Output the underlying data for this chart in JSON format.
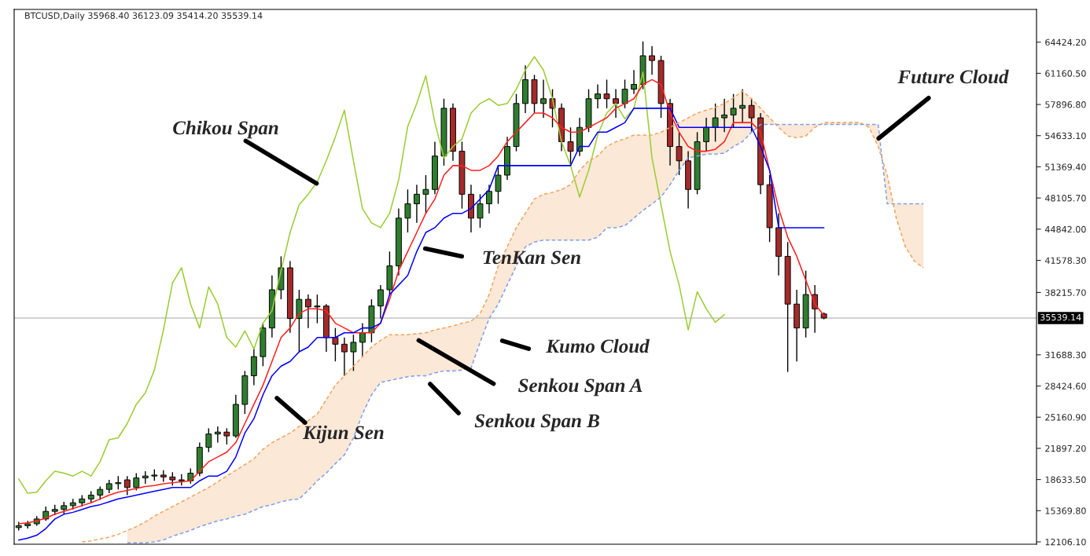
{
  "chart_data": {
    "type": "candlestick",
    "title": "BTCUSD,Daily 35968.40 36123.09 35414.20 35539.14",
    "categories": [
      null,
      null,
      null,
      null,
      null,
      null,
      null,
      null,
      null,
      null,
      null,
      null,
      null,
      null,
      null,
      null,
      null,
      null,
      null,
      null,
      null,
      null,
      null,
      null,
      null,
      null,
      null,
      null,
      null,
      null,
      null,
      null,
      null,
      null,
      null,
      null,
      null,
      null,
      null,
      null,
      null,
      null,
      null,
      null,
      null,
      null,
      null,
      null,
      null,
      null,
      null,
      null,
      null,
      null,
      null,
      null,
      null,
      null,
      null,
      null,
      null,
      null,
      null,
      null,
      null,
      null,
      null,
      null,
      null,
      null,
      null,
      null,
      null,
      null,
      null,
      null,
      null,
      null,
      null,
      null,
      null,
      null,
      null,
      null,
      null,
      null,
      null,
      null,
      null,
      null,
      null,
      null,
      null,
      null,
      null,
      null,
      null,
      null,
      null,
      null,
      null,
      null,
      null,
      null,
      null,
      null,
      null,
      null,
      null,
      null,
      null,
      null,
      null
    ],
    "ohlc": [
      [
        13600,
        14200,
        13300,
        13800
      ],
      [
        13800,
        14300,
        13500,
        14000
      ],
      [
        14000,
        14800,
        13800,
        14500
      ],
      [
        14500,
        15800,
        14300,
        15300
      ],
      [
        15300,
        16000,
        14900,
        15500
      ],
      [
        15500,
        16300,
        15000,
        15900
      ],
      [
        15900,
        16600,
        15500,
        16200
      ],
      [
        16200,
        17000,
        15800,
        16600
      ],
      [
        16600,
        17400,
        16200,
        17000
      ],
      [
        17000,
        17900,
        16500,
        17600
      ],
      [
        17600,
        18600,
        17200,
        18200
      ],
      [
        18200,
        19000,
        17600,
        18300
      ],
      [
        18600,
        19000,
        17000,
        17800
      ],
      [
        17800,
        19300,
        17500,
        18800
      ],
      [
        18800,
        19500,
        18200,
        19000
      ],
      [
        19000,
        19700,
        18500,
        19100
      ],
      [
        19100,
        19600,
        18400,
        18900
      ],
      [
        18900,
        19400,
        18000,
        18600
      ],
      [
        18600,
        19200,
        18000,
        18500
      ],
      [
        18500,
        19800,
        18200,
        19300
      ],
      [
        19300,
        22500,
        19000,
        22000
      ],
      [
        22000,
        24000,
        21500,
        23400
      ],
      [
        23400,
        24200,
        22500,
        23600
      ],
      [
        23600,
        24000,
        22300,
        23200
      ],
      [
        23200,
        27500,
        23000,
        26500
      ],
      [
        26500,
        30000,
        25500,
        29500
      ],
      [
        29500,
        32500,
        28500,
        31500
      ],
      [
        31500,
        35000,
        30500,
        34500
      ],
      [
        34500,
        40000,
        33500,
        38500
      ],
      [
        38500,
        42000,
        37500,
        40800
      ],
      [
        40800,
        41500,
        34000,
        35500
      ],
      [
        35500,
        38500,
        32000,
        37500
      ],
      [
        37500,
        38000,
        34500,
        36700
      ],
      [
        36700,
        38000,
        35000,
        36800
      ],
      [
        36800,
        37000,
        32000,
        33500
      ],
      [
        33500,
        34500,
        31000,
        32800
      ],
      [
        32800,
        33500,
        29500,
        32000
      ],
      [
        32000,
        33800,
        30000,
        33000
      ],
      [
        33000,
        35000,
        31500,
        34000
      ],
      [
        34000,
        37500,
        33000,
        36800
      ],
      [
        36800,
        39000,
        35500,
        38500
      ],
      [
        38500,
        42500,
        38000,
        41000
      ],
      [
        41000,
        47000,
        40000,
        46000
      ],
      [
        46000,
        49000,
        44500,
        47500
      ],
      [
        47500,
        49500,
        45500,
        48500
      ],
      [
        48500,
        50500,
        46500,
        49000
      ],
      [
        49000,
        54000,
        48500,
        52500
      ],
      [
        52500,
        58500,
        51500,
        57500
      ],
      [
        57500,
        58000,
        52000,
        53000
      ],
      [
        53000,
        54000,
        47000,
        48500
      ],
      [
        48500,
        49500,
        44500,
        46000
      ],
      [
        46000,
        48500,
        45000,
        47500
      ],
      [
        47500,
        49500,
        46500,
        48800
      ],
      [
        48800,
        51500,
        47500,
        50500
      ],
      [
        50500,
        54500,
        50000,
        53500
      ],
      [
        53500,
        59000,
        53000,
        58000
      ],
      [
        58000,
        62000,
        57000,
        60500
      ],
      [
        60500,
        61000,
        57000,
        58000
      ],
      [
        58000,
        60500,
        56500,
        58500
      ],
      [
        58500,
        59500,
        55500,
        57500
      ],
      [
        57500,
        58000,
        53000,
        54000
      ],
      [
        54000,
        55500,
        51500,
        53000
      ],
      [
        53000,
        56500,
        52500,
        55500
      ],
      [
        55500,
        59500,
        55000,
        58500
      ],
      [
        58500,
        60000,
        57500,
        59000
      ],
      [
        59000,
        60500,
        57500,
        58500
      ],
      [
        58500,
        59500,
        56500,
        58000
      ],
      [
        58000,
        60500,
        57500,
        59500
      ],
      [
        59500,
        61500,
        59000,
        60000
      ],
      [
        60000,
        64500,
        59500,
        63000
      ],
      [
        63000,
        64000,
        61000,
        62500
      ],
      [
        62500,
        63000,
        56500,
        58000
      ],
      [
        58000,
        58500,
        51500,
        53500
      ],
      [
        53500,
        55000,
        50500,
        52000
      ],
      [
        52000,
        53000,
        47000,
        49000
      ],
      [
        49000,
        55000,
        48500,
        54000
      ],
      [
        54000,
        56500,
        53000,
        55500
      ],
      [
        55500,
        58000,
        54000,
        56500
      ],
      [
        56500,
        58500,
        55000,
        56800
      ],
      [
        56800,
        59000,
        55500,
        57500
      ],
      [
        57500,
        59500,
        56000,
        57800
      ],
      [
        57800,
        58500,
        55000,
        56500
      ],
      [
        56500,
        57000,
        48500,
        49500
      ],
      [
        49500,
        50500,
        43500,
        45000
      ],
      [
        45000,
        46500,
        40000,
        42000
      ],
      [
        42000,
        43500,
        29900,
        37000
      ],
      [
        37000,
        38500,
        31000,
        34500
      ],
      [
        34500,
        40500,
        33500,
        38000
      ],
      [
        38000,
        39000,
        34000,
        36500
      ],
      [
        35968.4,
        36123.09,
        35414.2,
        35539.14
      ],
      null,
      null,
      null,
      null,
      null,
      null,
      null,
      null,
      null,
      null,
      null,
      null,
      null,
      null,
      null,
      null,
      null,
      null,
      null,
      null,
      null,
      null,
      null
    ],
    "colors": [
      "#2f7d2f",
      "#2f7d2f",
      "#2f7d2f",
      "#2f7d2f",
      "#2f7d2f",
      "#2f7d2f",
      "#2f7d2f",
      "#2f7d2f",
      "#2f7d2f",
      "#2f7d2f",
      "#2f7d2f",
      "#2f7d2f",
      "#a52a2a",
      "#2f7d2f",
      "#2f7d2f",
      "#2f7d2f",
      "#a52a2a",
      "#a52a2a",
      "#a52a2a",
      "#2f7d2f",
      "#2f7d2f",
      "#2f7d2f",
      "#2f7d2f",
      "#a52a2a",
      "#2f7d2f",
      "#2f7d2f",
      "#2f7d2f",
      "#2f7d2f",
      "#2f7d2f",
      "#2f7d2f",
      "#a52a2a",
      "#2f7d2f",
      "#a52a2a",
      "#2f7d2f",
      "#a52a2a",
      "#a52a2a",
      "#a52a2a",
      "#2f7d2f",
      "#2f7d2f",
      "#2f7d2f",
      "#2f7d2f",
      "#2f7d2f",
      "#2f7d2f",
      "#2f7d2f",
      "#2f7d2f",
      "#2f7d2f",
      "#2f7d2f",
      "#2f7d2f",
      "#a52a2a",
      "#a52a2a",
      "#a52a2a",
      "#2f7d2f",
      "#2f7d2f",
      "#2f7d2f",
      "#2f7d2f",
      "#2f7d2f",
      "#2f7d2f",
      "#a52a2a",
      "#2f7d2f",
      "#a52a2a",
      "#a52a2a",
      "#a52a2a",
      "#2f7d2f",
      "#2f7d2f",
      "#2f7d2f",
      "#a52a2a",
      "#a52a2a",
      "#2f7d2f",
      "#2f7d2f",
      "#2f7d2f",
      "#a52a2a",
      "#a52a2a",
      "#a52a2a",
      "#a52a2a",
      "#a52a2a",
      "#2f7d2f",
      "#2f7d2f",
      "#2f7d2f",
      "#2f7d2f",
      "#2f7d2f",
      "#2f7d2f",
      "#a52a2a",
      "#a52a2a",
      "#a52a2a",
      "#a52a2a",
      "#a52a2a",
      "#a52a2a",
      "#2f7d2f",
      "#a52a2a",
      "#a52a2a",
      null,
      null,
      null,
      null,
      null,
      null,
      null,
      null,
      null,
      null,
      null,
      null,
      null,
      null,
      null,
      null,
      null,
      null,
      null,
      null,
      null,
      null,
      null
    ],
    "series": [
      {
        "type": "line",
        "color": "#9acd32",
        "line_style": "solid",
        "values": [
          18700,
          17200,
          17300,
          18500,
          19500,
          19300,
          19000,
          19500,
          19000,
          20500,
          22800,
          23000,
          24500,
          26500,
          27700,
          30100,
          34300,
          39200,
          40800,
          37000,
          34500,
          38800,
          37000,
          33500,
          32500,
          34200,
          32300,
          35000,
          36300,
          40500,
          44500,
          47400,
          48500,
          49800,
          52000,
          54500,
          57300,
          52000,
          47000,
          45500,
          45000,
          46500,
          50000,
          55600,
          58000,
          60900,
          56000,
          52300,
          53500,
          54300,
          57000,
          58000,
          58500,
          57800,
          58000,
          59500,
          61500,
          62900,
          61500,
          58500,
          54000,
          51500,
          48200,
          51000,
          54700,
          57000,
          58000,
          56400,
          57500,
          61300,
          52300,
          47400,
          42500,
          39000,
          34300,
          38300,
          36500,
          35100,
          35900,
          null,
          null,
          null,
          null,
          null,
          null,
          null,
          null,
          null,
          null,
          null,
          null,
          null,
          null,
          null,
          null,
          null,
          null,
          null,
          null,
          null,
          null,
          null,
          null,
          null,
          null,
          null,
          null,
          null,
          null,
          null,
          null,
          null,
          null
        ]
      },
      {
        "type": "line",
        "color": "#ff2020",
        "line_style": "solid",
        "values": [
          14000,
          14100,
          14300,
          14600,
          15000,
          15300,
          15600,
          15900,
          16200,
          16600,
          17000,
          17300,
          17500,
          17700,
          17900,
          18000,
          18200,
          18300,
          18400,
          18500,
          19500,
          20500,
          21000,
          21500,
          22500,
          24500,
          26500,
          28500,
          31000,
          33500,
          34500,
          36000,
          36500,
          36500,
          36300,
          35000,
          34500,
          34000,
          34000,
          34000,
          35000,
          37500,
          40500,
          42500,
          44500,
          46500,
          48000,
          50500,
          51500,
          51500,
          51000,
          51000,
          51500,
          52500,
          54000,
          55000,
          56000,
          57000,
          57000,
          56500,
          55500,
          55000,
          55000,
          55500,
          56000,
          56500,
          57500,
          58000,
          58500,
          60000,
          60500,
          60000,
          57000,
          55000,
          53500,
          53000,
          53000,
          53200,
          54000,
          56000,
          56000,
          56000,
          55000,
          51000,
          47000,
          44000,
          42000,
          39500,
          37000,
          35800,
          null,
          null,
          null,
          null,
          null,
          null,
          null,
          null,
          null,
          null,
          null,
          null,
          null,
          null,
          null,
          null,
          null,
          null,
          null,
          null,
          null,
          null,
          null
        ]
      },
      {
        "type": "line",
        "color": "#0000ff",
        "line_style": "solid",
        "values": [
          12300,
          12500,
          12800,
          13500,
          14500,
          15000,
          15200,
          15500,
          15800,
          16000,
          16300,
          16600,
          16800,
          17000,
          17200,
          17400,
          17600,
          17800,
          17800,
          17800,
          18500,
          19000,
          19000,
          19500,
          21000,
          23500,
          25000,
          27500,
          29500,
          30500,
          31000,
          32000,
          32500,
          33500,
          33500,
          33500,
          34000,
          34000,
          34500,
          34500,
          35000,
          38000,
          39000,
          40000,
          42500,
          44500,
          45000,
          46000,
          46500,
          46500,
          47000,
          48000,
          49000,
          51500,
          51500,
          51500,
          51500,
          51500,
          51500,
          51500,
          51500,
          51500,
          53500,
          53500,
          55000,
          55000,
          55500,
          56000,
          57500,
          57500,
          57500,
          57500,
          57500,
          55500,
          55500,
          55500,
          55500,
          55500,
          55500,
          55500,
          55500,
          55500,
          53500,
          51000,
          45000,
          45000,
          45000,
          45000,
          45000,
          45000,
          null,
          null,
          null,
          null,
          null,
          null,
          null,
          null,
          null,
          null,
          null,
          null,
          null,
          null,
          null,
          null,
          null,
          null,
          null,
          null,
          null,
          null,
          null
        ]
      },
      {
        "type": "line",
        "color": "#f4a460",
        "line_style": "dashed",
        "lower": [
          null,
          null,
          null,
          null,
          null,
          null,
          null,
          null,
          null,
          null,
          null,
          null,
          12000,
          12000,
          12000,
          12100,
          12300,
          12700,
          13000,
          13300,
          13700,
          14000,
          14300,
          14500,
          14800,
          15000,
          15400,
          15800,
          16000,
          16300,
          16500,
          16600,
          17500,
          18500,
          19300,
          20300,
          21200,
          23000,
          25500,
          27500,
          28800,
          29000,
          29200,
          29400,
          29500,
          29500,
          29800,
          30000,
          30000,
          30100,
          30300,
          33000,
          35500,
          37000,
          39000,
          41000,
          43000,
          43500,
          43700,
          43700,
          43700,
          43700,
          43700,
          43700,
          44000,
          45000,
          45000,
          45200,
          46000,
          46800,
          47500,
          48200,
          49500,
          51000,
          52300,
          52500,
          52700,
          52700,
          52800,
          53500,
          54000,
          55000,
          55800,
          55800,
          55800,
          55800,
          55800,
          55800,
          55800,
          55800,
          55800,
          55800,
          55800,
          55800,
          55800,
          55800,
          47500,
          47500,
          47500,
          47500,
          47500,
          null,
          null,
          null,
          null,
          null,
          null,
          null,
          null,
          null,
          null,
          null,
          null
        ],
        "upper": [
          null,
          null,
          null,
          null,
          null,
          null,
          null,
          null,
          null,
          null,
          null,
          null,
          13300,
          13700,
          14200,
          14800,
          15300,
          15800,
          16300,
          16800,
          17300,
          17800,
          18400,
          19000,
          19600,
          20200,
          20800,
          21800,
          22500,
          23000,
          23500,
          24200,
          24800,
          25500,
          27000,
          28500,
          29500,
          30500,
          31500,
          32500,
          33200,
          33800,
          33800,
          33800,
          33900,
          34000,
          34300,
          34500,
          34700,
          35000,
          35200,
          36000,
          38000,
          41000,
          43000,
          45000,
          46500,
          48000,
          48500,
          48700,
          49000,
          49500,
          51000,
          52000,
          52500,
          53500,
          54000,
          54300,
          54700,
          54700,
          54700,
          55000,
          55500,
          56000,
          56500,
          57000,
          57300,
          57600,
          58000,
          58600,
          59300,
          58500,
          57500,
          56500,
          55500,
          54600,
          54400,
          54600,
          55500,
          56000,
          56000,
          56000,
          56000,
          56000,
          55500,
          53500,
          50500,
          46000,
          43000,
          41500,
          40800,
          null,
          null,
          null,
          null,
          null,
          null,
          null,
          null,
          null,
          null,
          null,
          null
        ],
        "values": [
          null,
          null,
          null,
          null,
          null,
          null,
          null,
          12100,
          12200,
          12400,
          12600,
          12900,
          13300,
          13700,
          14200,
          14800,
          15300,
          15800,
          16300,
          16800,
          17300,
          17800,
          18400,
          19000,
          19600,
          20200,
          20800,
          21800,
          22500,
          23000,
          23500,
          24200,
          24800,
          25500,
          27000,
          28500,
          29500,
          30500,
          31500,
          32500,
          33200,
          33800,
          33800,
          33800,
          33900,
          34000,
          34300,
          34500,
          34700,
          35000,
          35200,
          36000,
          38000,
          41000,
          43000,
          45000,
          46500,
          48000,
          48500,
          48700,
          49000,
          49500,
          51000,
          52000,
          52500,
          53500,
          54000,
          54300,
          54700,
          54700,
          54700,
          55000,
          55500,
          56000,
          56500,
          57000,
          57300,
          57600,
          58000,
          58600,
          59300,
          58500,
          57500,
          56500,
          55500,
          54600,
          54400,
          54600,
          55500,
          56000,
          56000,
          56000,
          56000,
          56000,
          55500,
          53500,
          50500,
          46000,
          43000,
          41500,
          40800,
          null,
          null,
          null,
          null,
          null,
          null,
          null,
          null,
          null,
          null,
          null,
          null
        ]
      },
      {
        "type": "line",
        "color": "#7f9fe8",
        "line_style": "dashed",
        "values": [
          null,
          null,
          null,
          null,
          null,
          null,
          null,
          null,
          null,
          null,
          null,
          null,
          12000,
          12000,
          12000,
          12100,
          12300,
          12700,
          13000,
          13300,
          13700,
          14000,
          14300,
          14500,
          14800,
          15000,
          15400,
          15800,
          16000,
          16300,
          16500,
          16600,
          17500,
          18500,
          19300,
          20300,
          21200,
          23000,
          25500,
          27500,
          28800,
          29000,
          29200,
          29400,
          29500,
          29500,
          29800,
          30000,
          30000,
          30100,
          30300,
          33000,
          35500,
          37000,
          39000,
          41000,
          43000,
          43500,
          43700,
          43700,
          43700,
          43700,
          43700,
          43700,
          44000,
          45000,
          45000,
          45200,
          46000,
          46800,
          47500,
          48200,
          49500,
          51000,
          52300,
          52500,
          52700,
          52700,
          52800,
          53500,
          54000,
          55000,
          55800,
          55800,
          55800,
          55800,
          55800,
          55800,
          55800,
          55800,
          55800,
          55800,
          55800,
          55800,
          55800,
          55800,
          47500,
          47500,
          47500,
          47500,
          47500,
          null,
          null,
          null,
          null,
          null,
          null,
          null,
          null,
          null,
          null,
          null,
          null
        ]
      }
    ],
    "ylim": [
      11860,
      67850
    ],
    "yticks": [
      {
        "value": 64424.2,
        "label": "64424.20"
      },
      {
        "value": 61160.5,
        "label": "61160.50"
      },
      {
        "value": 57896.8,
        "label": "57896.80"
      },
      {
        "value": 54633.1,
        "label": "54633.10"
      },
      {
        "value": 51369.4,
        "label": "51369.40"
      },
      {
        "value": 48105.7,
        "label": "48105.70"
      },
      {
        "value": 44842,
        "label": "44842.00"
      },
      {
        "value": 41578.3,
        "label": "41578.30"
      },
      {
        "value": 38215.7,
        "label": "38215.70"
      },
      {
        "value": 31688.3,
        "label": "31688.30"
      },
      {
        "value": 28424.6,
        "label": "28424.60"
      },
      {
        "value": 25160.9,
        "label": "25160.90"
      },
      {
        "value": 21897.2,
        "label": "21897.20"
      },
      {
        "value": 18633.5,
        "label": "18633.50"
      },
      {
        "value": 15369.8,
        "label": "15369.80"
      },
      {
        "value": 12106.1,
        "label": "12106.10"
      }
    ],
    "ref_lines": [
      {
        "axis": "y",
        "value": 35539.14,
        "label": "35539.14",
        "color": "#c0c0c0"
      }
    ],
    "annotations": [
      "Chikou Span",
      "TenKan Sen",
      "Kumo Cloud",
      "Senkou Span A",
      "Senkou Span B",
      "Kijun Sen",
      "Future Cloud"
    ],
    "tick_labels": "y",
    "grid": false,
    "legend": false
  }
}
